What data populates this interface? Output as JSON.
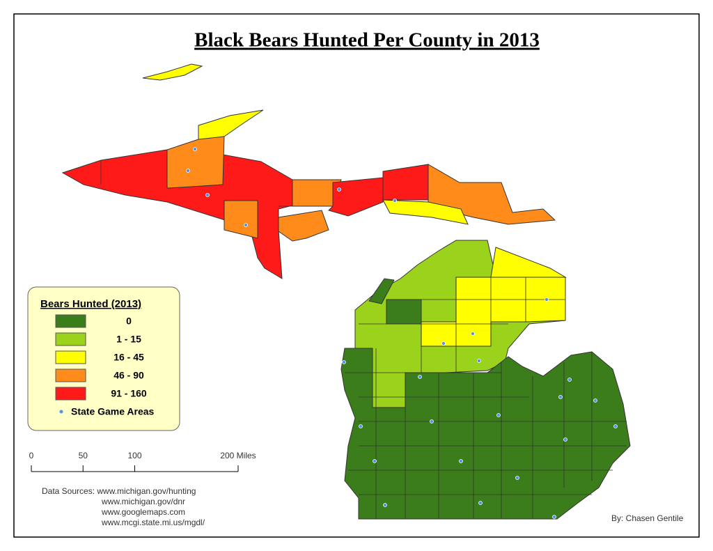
{
  "title": "Black Bears Hunted Per County in 2013",
  "legend": {
    "title": "Bears Hunted (2013)",
    "items": [
      {
        "label": "0",
        "color": "#3b7d1b"
      },
      {
        "label": "1 - 15",
        "color": "#9bd21c"
      },
      {
        "label": "16 - 45",
        "color": "#ffff00"
      },
      {
        "label": "46 - 90",
        "color": "#ff8c1a"
      },
      {
        "label": "91 - 160",
        "color": "#ff1a1a"
      }
    ],
    "game_areas": {
      "label": "State Game Areas",
      "color": "#4f90e8"
    }
  },
  "scale_bar": {
    "xlim": [
      0,
      200
    ],
    "xticks": [
      0,
      50,
      100,
      {
        "value": 200,
        "label": "200 Miles"
      }
    ]
  },
  "sources": [
    "Data Sources: www.michigan.gov/hunting",
    "www.michigan.gov/dnr",
    "www.googlemaps.com",
    "www.mcgi.state.mi.us/mgdl/"
  ],
  "credit": "By: Chasen Gentile"
}
